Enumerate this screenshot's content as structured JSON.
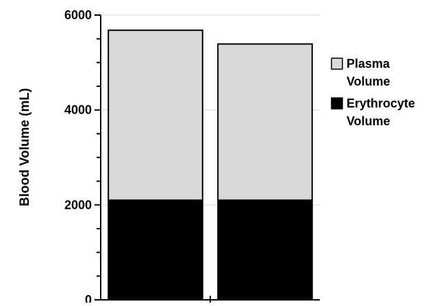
{
  "chart_data": {
    "type": "bar",
    "stacked": true,
    "categories": [
      "",
      ""
    ],
    "series": [
      {
        "name": "Erythrocyte Volume",
        "values": [
          2100,
          2100
        ],
        "color": "#000000"
      },
      {
        "name": "Plasma Volume",
        "values": [
          3580,
          3290
        ],
        "color": "#d9d9d9"
      }
    ],
    "ylabel": "Blood Volume (mL)",
    "ylim": [
      0,
      6000
    ],
    "yticks": [
      0,
      2000,
      4000,
      6000
    ],
    "ytick_labels": [
      "0",
      "2000",
      "4000",
      "6000"
    ],
    "ytick_minor_step": 500,
    "grid": true,
    "legend": {
      "placement": "right",
      "entries": [
        {
          "label_lines": [
            "Plasma",
            "Volume"
          ],
          "color": "#d9d9d9"
        },
        {
          "label_lines": [
            "Erythrocyte",
            "Volume"
          ],
          "color": "#000000"
        }
      ]
    }
  }
}
